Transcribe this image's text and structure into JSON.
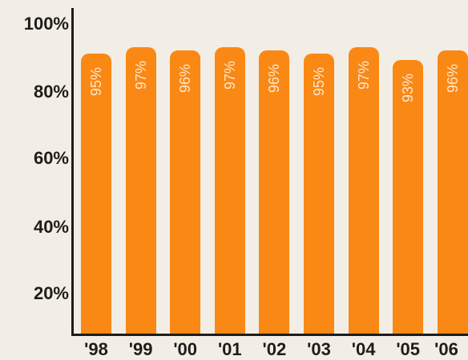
{
  "chart_data": {
    "type": "bar",
    "categories": [
      "'98",
      "'99",
      "'00",
      "'01",
      "'02",
      "'03",
      "'04",
      "'05",
      "'06"
    ],
    "values": [
      95,
      97,
      96,
      97,
      96,
      95,
      97,
      93,
      96
    ],
    "value_labels": [
      "95%",
      "97%",
      "96%",
      "97%",
      "96%",
      "95%",
      "97%",
      "93%",
      "96%"
    ],
    "y_ticks": [
      20,
      40,
      60,
      80,
      100
    ],
    "y_tick_labels": [
      "20%",
      "40%",
      "60%",
      "80%",
      "100%"
    ],
    "ylim": [
      0,
      100
    ],
    "title": "",
    "xlabel": "",
    "ylabel": "",
    "grid": false,
    "colors": {
      "bar": "#fa8814",
      "bar_label": "#fde7cf",
      "axis": "#1d1d1b",
      "background": "#f3eee5"
    }
  }
}
